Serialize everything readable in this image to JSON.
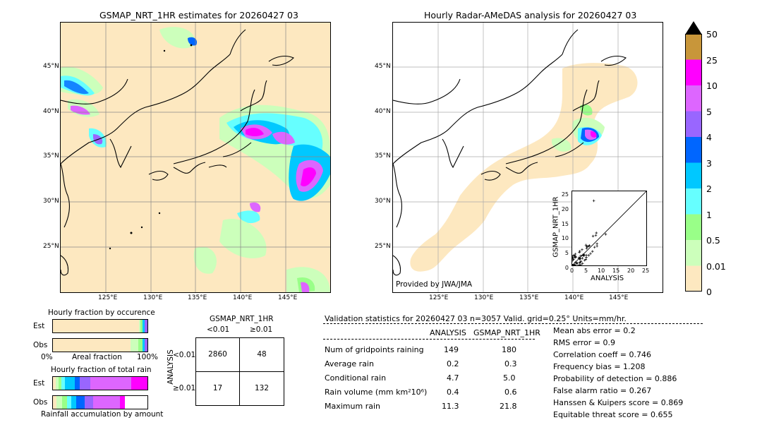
{
  "left_map": {
    "title": "GSMAP_NRT_1HR estimates for 20260427 03",
    "lat_labels": [
      "45°N",
      "40°N",
      "35°N",
      "30°N",
      "25°N"
    ],
    "lon_labels": [
      "125°E",
      "130°E",
      "135°E",
      "140°E",
      "145°E"
    ]
  },
  "right_map": {
    "title": "Hourly Radar-AMeDAS analysis for 20260427 03",
    "lat_labels": [
      "45°N",
      "40°N",
      "35°N",
      "30°N",
      "25°N"
    ],
    "lon_labels": [
      "125°E",
      "130°E",
      "135°E",
      "140°E",
      "145°E"
    ],
    "credit": "Provided by JWA/JMA"
  },
  "scatter": {
    "xlabel": "ANALYSIS",
    "ylabel": "GSMAP_NRT_1HR",
    "ticks": [
      "0",
      "5",
      "10",
      "15",
      "20",
      "25"
    ]
  },
  "colorbar": {
    "labels": [
      "50",
      "25",
      "10",
      "5",
      "4",
      "3",
      "2",
      "1",
      "0.5",
      "0.01",
      "0"
    ],
    "colors": [
      "#c8963a",
      "#ff00ff",
      "#dd66ff",
      "#9966ff",
      "#0066ff",
      "#00c8ff",
      "#66ffff",
      "#99ff88",
      "#ccffbb",
      "#fde8c0"
    ]
  },
  "occurrence": {
    "title": "Hourly fraction by occurence",
    "row_est": "Est",
    "row_obs": "Obs",
    "axis_left": "0%",
    "axis_mid": "Areal fraction",
    "axis_right": "100%"
  },
  "total_rain": {
    "title": "Hourly fraction of total rain",
    "row_est": "Est",
    "row_obs": "Obs",
    "footer": "Rainfall accumulation by amount"
  },
  "contingency": {
    "title": "GSMAP_NRT_1HR",
    "col_lt": "<0.01",
    "col_ge": "≥0.01",
    "row_axis": "ANALYSIS",
    "row_lt": "<0.01",
    "row_ge": "≥0.01",
    "cells": [
      "2860",
      "48",
      "17",
      "132"
    ]
  },
  "validation": {
    "header": "Validation statistics for 20260427 03  n=3057 Valid. grid=0.25° Units=mm/hr.",
    "col_analysis": "ANALYSIS",
    "col_gsmap": "GSMAP_NRT_1HR",
    "rows": [
      {
        "label": "Num of gridpoints raining",
        "a": "149",
        "g": "180"
      },
      {
        "label": "Average rain",
        "a": "0.2",
        "g": "0.3"
      },
      {
        "label": "Conditional rain",
        "a": "4.7",
        "g": "5.0"
      },
      {
        "label": "Rain volume (mm km²10⁶)",
        "a": "0.4",
        "g": "0.6"
      },
      {
        "label": "Maximum rain",
        "a": "11.3",
        "g": "21.8"
      }
    ],
    "scores": [
      "Mean abs error =    0.2",
      "RMS error =    0.9",
      "Correlation coeff =  0.746",
      "Frequency bias =  1.208",
      "Probability of detection =  0.886",
      "False alarm ratio =  0.267",
      "Hanssen & Kuipers score =  0.869",
      "Equitable threat score =  0.655"
    ]
  }
}
